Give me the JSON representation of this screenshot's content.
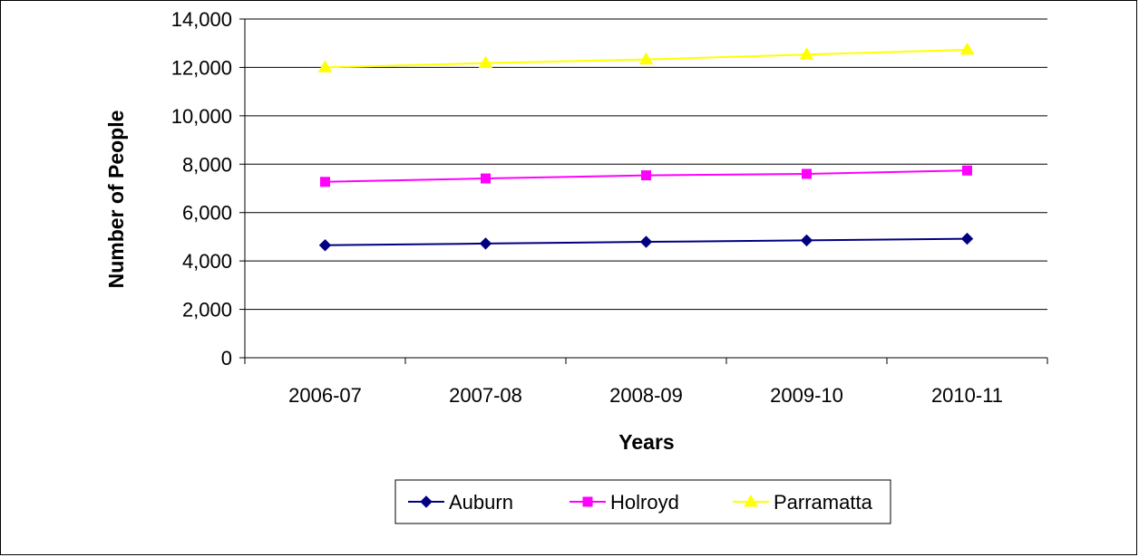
{
  "chart_data": {
    "type": "line",
    "title": "",
    "xlabel": "Years",
    "ylabel": "Number of People",
    "categories": [
      "2006-07",
      "2007-08",
      "2008-09",
      "2009-10",
      "2010-11"
    ],
    "ylim": [
      0,
      14000
    ],
    "yticks": [
      0,
      2000,
      4000,
      6000,
      8000,
      10000,
      12000,
      14000
    ],
    "ytick_labels": [
      "0",
      "2,000",
      "4,000",
      "6,000",
      "8,000",
      "10,000",
      "12,000",
      "14,000"
    ],
    "grid": true,
    "legend_position": "bottom",
    "series": [
      {
        "name": "Auburn",
        "color": "#000080",
        "marker": "diamond",
        "values": [
          4650,
          4720,
          4790,
          4850,
          4920
        ]
      },
      {
        "name": "Holroyd",
        "color": "#ff00ff",
        "marker": "square",
        "values": [
          7270,
          7410,
          7540,
          7600,
          7740
        ]
      },
      {
        "name": "Parramatta",
        "color": "#ffff00",
        "marker": "triangle",
        "values": [
          12000,
          12180,
          12330,
          12530,
          12730
        ]
      }
    ]
  }
}
